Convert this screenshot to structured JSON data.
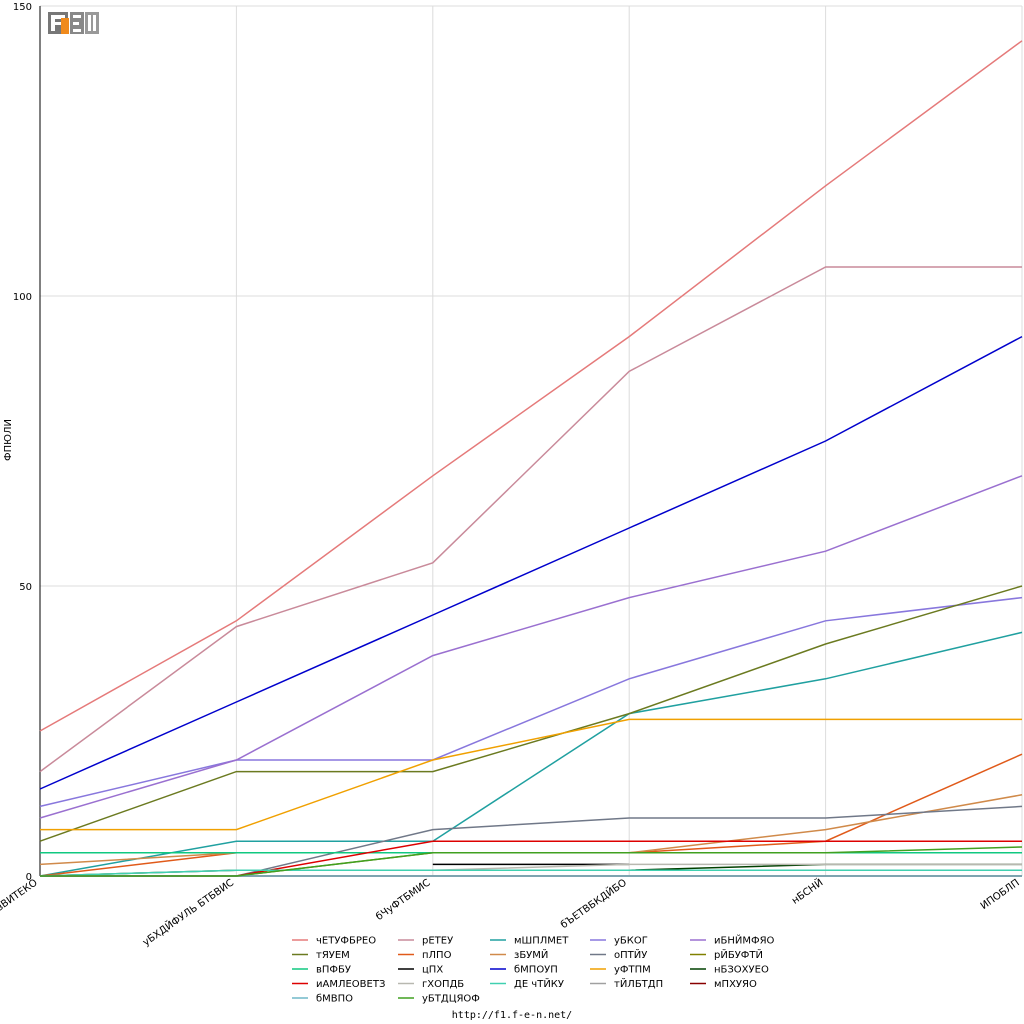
{
  "footer_url": "http://f1.f-e-n.net/",
  "logo_text": "F1EN",
  "chart_data": {
    "type": "line",
    "title": "",
    "xlabel": "",
    "ylabel": "ФПЮЛИ",
    "ylim": [
      0,
      150
    ],
    "yticks": [
      0,
      50,
      100,
      150
    ],
    "grid": true,
    "legend_position": "bottom",
    "categories": [
      "вВИТЕКО",
      "уБХДЙФУЛЬ БТБВИС",
      "бЧуФТБМИС",
      "бЪЕТВБКДЙБО",
      "нБСНЙ",
      "ИПОБЛП"
    ],
    "series": [
      {
        "name": "чЕТУФБРЕО",
        "color": "#e57a7a",
        "values": [
          25,
          44,
          69,
          93,
          119,
          144
        ]
      },
      {
        "name": "рЕТЕУ",
        "color": "#c98a9a",
        "values": [
          18,
          43,
          54,
          87,
          105,
          105
        ]
      },
      {
        "name": "мШПЛМЕТ",
        "color": "#20a0a0",
        "values": [
          0,
          6,
          6,
          28,
          34,
          42
        ]
      },
      {
        "name": "уБКОГ",
        "color": "#8877dd",
        "values": [
          12,
          20,
          20,
          34,
          44,
          48
        ]
      },
      {
        "name": "иБНЙМФЯО",
        "color": "#9a70d0",
        "values": [
          10,
          20,
          38,
          48,
          56,
          69
        ]
      },
      {
        "name": "тЯУЕМ",
        "color": "#6b7a20",
        "values": [
          6,
          18,
          18,
          28,
          40,
          50
        ]
      },
      {
        "name": "пЛПО",
        "color": "#e05a1a",
        "values": [
          0,
          4,
          4,
          4,
          6,
          21
        ]
      },
      {
        "name": "зБУМЙ",
        "color": "#d08a4a",
        "values": [
          2,
          4,
          4,
          4,
          8,
          14
        ]
      },
      {
        "name": "оПТЙУ",
        "color": "#707888",
        "values": [
          0,
          0,
          8,
          10,
          10,
          12
        ]
      },
      {
        "name": "рЙБУФТЙ",
        "color": "#808000",
        "values": [
          0,
          0,
          4,
          4,
          4,
          4
        ]
      },
      {
        "name": "вПФБУ",
        "color": "#10c880",
        "values": [
          4,
          4,
          4,
          4,
          4,
          4
        ]
      },
      {
        "name": "цПХ",
        "color": "#000000",
        "values": [
          null,
          null,
          2,
          2,
          null,
          null
        ]
      },
      {
        "name": "бМПОУП",
        "color": "#0000cc",
        "values": [
          15,
          30,
          45,
          60,
          75,
          93
        ]
      },
      {
        "name": "уФТПМ",
        "color": "#f0a000",
        "values": [
          8,
          8,
          20,
          27,
          27,
          27
        ]
      },
      {
        "name": "нБЗОХУЕО",
        "color": "#004000",
        "values": [
          0,
          1,
          1,
          1,
          2,
          2
        ]
      },
      {
        "name": "иАМЛЕОВЕТЗ",
        "color": "#dd0000",
        "values": [
          null,
          0,
          6,
          6,
          6,
          6
        ]
      },
      {
        "name": "гХОПДБ",
        "color": "#b8b8b0",
        "values": [
          0,
          1,
          1,
          2,
          2,
          2
        ]
      },
      {
        "name": "ДЕ чТЙКУ",
        "color": "#40d0b0",
        "values": [
          0,
          1,
          1,
          1,
          1,
          1
        ]
      },
      {
        "name": "тЙЛБТДП",
        "color": "#a0a0a0",
        "values": [
          0,
          0,
          0,
          0,
          0,
          0
        ]
      },
      {
        "name": "мПХУЯО",
        "color": "#880000",
        "values": [
          0,
          0,
          0,
          0,
          0,
          0
        ]
      },
      {
        "name": "бМВПО",
        "color": "#70b8c8",
        "values": [
          0,
          0,
          0,
          0,
          0,
          0
        ]
      },
      {
        "name": "уБТДЦЯОФ",
        "color": "#40a020",
        "values": [
          0,
          0,
          4,
          4,
          4,
          5
        ]
      }
    ]
  }
}
